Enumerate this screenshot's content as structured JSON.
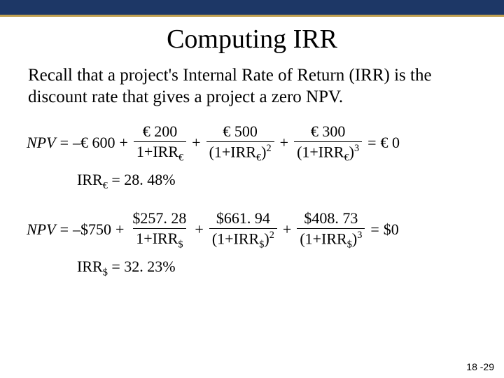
{
  "layout": {
    "top_bar_color": "#1d3766",
    "accent_line_color": "#c0a050",
    "background": "#ffffff",
    "text_color": "#000000",
    "title_fontsize": 38,
    "body_fontsize": 25,
    "eq_fontsize": 22
  },
  "title": "Computing IRR",
  "paragraph": "Recall that a project's Internal Rate of Return (IRR) is the discount rate that gives a project a zero NPV.",
  "eq1": {
    "lhs": "NPV",
    "eq_sign": "=",
    "initial": "–€ 600",
    "plus": "+",
    "t1_num": "€ 200",
    "t1_den_base": "1+IRR",
    "t1_den_sub": "€",
    "t2_num": "€ 500",
    "t2_den_prefix": "(1+IRR",
    "t2_den_sub": "€",
    "t2_den_suffix": ")",
    "t2_exp": "2",
    "t3_num": "€ 300",
    "t3_den_prefix": "(1+IRR",
    "t3_den_sub": "€",
    "t3_den_suffix": ")",
    "t3_exp": "3",
    "rhs": "€ 0"
  },
  "irr1": {
    "label_left": "IRR",
    "sub": "€",
    "label_right": " = 28. 48%"
  },
  "eq2": {
    "lhs": "NPV",
    "eq_sign": "=",
    "initial": "–$750",
    "plus": "+",
    "t1_num": "$257. 28",
    "t1_den_base": "1+IRR",
    "t1_den_sub": "$",
    "t2_num": "$661. 94",
    "t2_den_prefix": "(1+IRR",
    "t2_den_sub": "$",
    "t2_den_suffix": ")",
    "t2_exp": "2",
    "t3_num": "$408. 73",
    "t3_den_prefix": "(1+IRR",
    "t3_den_sub": "$",
    "t3_den_suffix": ")",
    "t3_exp": "3",
    "rhs": "$0"
  },
  "irr2": {
    "label_left": "IRR",
    "sub": "$",
    "label_right": " = 32. 23%"
  },
  "page_number": "18 -29"
}
